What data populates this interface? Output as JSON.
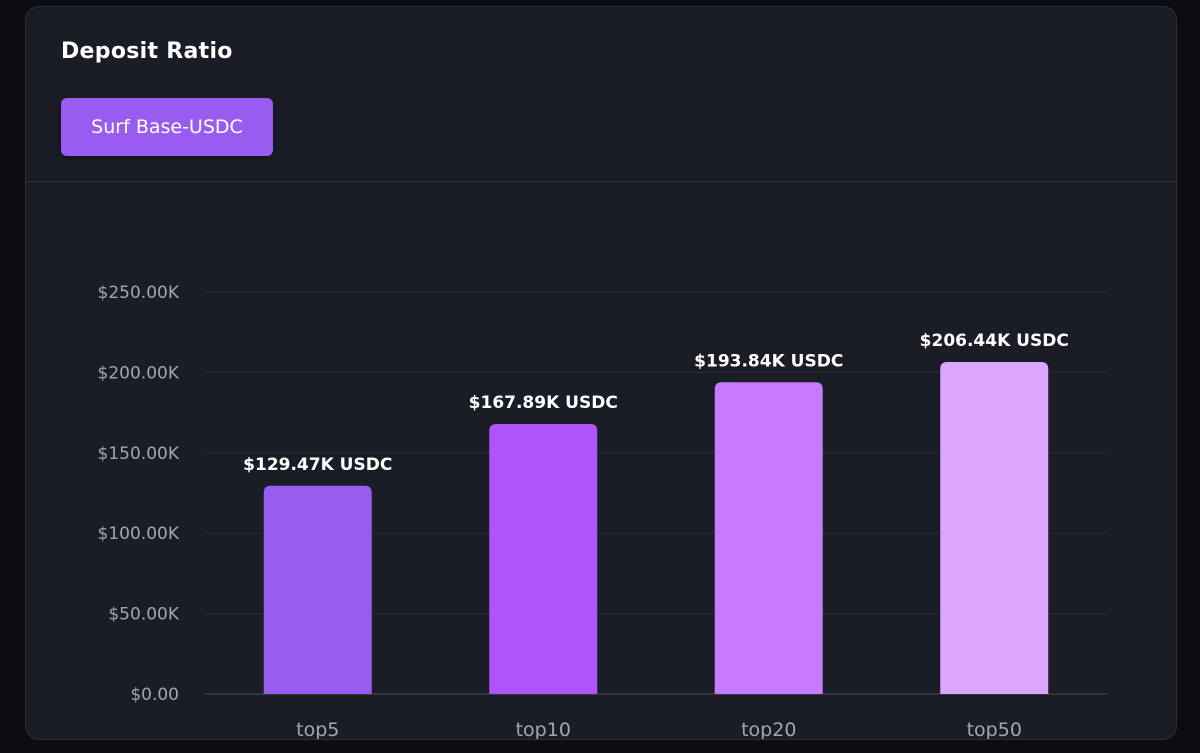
{
  "card": {
    "title": "Deposit Ratio",
    "filter_button": {
      "label": "Surf Base-USDC",
      "color": "#9a5cf0"
    }
  },
  "chart_data": {
    "type": "bar",
    "title": "",
    "xlabel": "",
    "ylabel": "",
    "categories": [
      "top5",
      "top10",
      "top20",
      "top50"
    ],
    "values": [
      129.47,
      167.89,
      193.84,
      206.44
    ],
    "value_unit": "thousand USDC",
    "data_labels": [
      "$129.47K USDC",
      "$167.89K USDC",
      "$193.84K USDC",
      "$206.44K USDC"
    ],
    "bar_colors": [
      "#975df1",
      "#af55fe",
      "#c67bfe",
      "#dda5fe"
    ],
    "ylim": [
      0,
      250
    ],
    "yticks": [
      0,
      50,
      100,
      150,
      200,
      250
    ],
    "ytick_labels": [
      "$0.00",
      "$50.00K",
      "$100.00K",
      "$150.00K",
      "$200.00K",
      "$250.00K"
    ],
    "grid": true,
    "legend": "none"
  }
}
